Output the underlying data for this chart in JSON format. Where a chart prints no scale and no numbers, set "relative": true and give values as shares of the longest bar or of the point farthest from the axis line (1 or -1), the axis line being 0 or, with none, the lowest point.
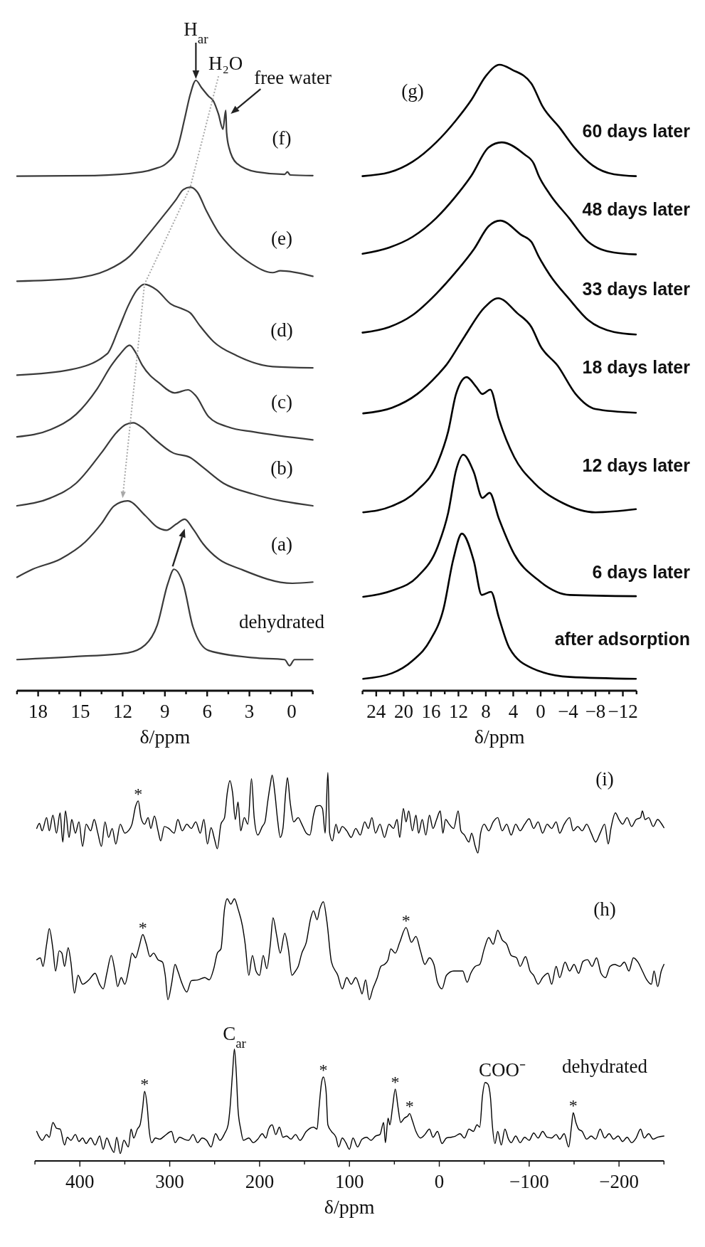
{
  "chart_data": [
    {
      "type": "line",
      "relative": true,
      "xlim": [
        19.5,
        -1.5
      ],
      "xticks": [
        {
          "value": 19.5,
          "label": null
        },
        18,
        {
          "value": 16.5,
          "label": null
        },
        15,
        {
          "value": 13.5,
          "label": null
        },
        12,
        {
          "value": 10.5,
          "label": null
        },
        9,
        {
          "value": 7.5,
          "label": null
        },
        6,
        {
          "value": 4.5,
          "label": null
        },
        3,
        {
          "value": 1.5,
          "label": null
        },
        0,
        {
          "value": -1.5,
          "label": null
        }
      ],
      "xlabel": "δ/ppm",
      "series": [
        {
          "name": "(f)",
          "color": "#3a3a3a",
          "x": [
            19.5,
            14.0,
            10.6,
            9.75,
            8.9,
            8.1,
            7.6,
            7.2,
            6.8,
            6.4,
            5.9,
            5.55,
            5.2,
            4.88,
            4.68,
            4.62,
            4.45,
            3.9,
            2.5,
            0.5,
            0.3,
            0.1,
            -1.5
          ],
          "values": [
            0.843,
            0.844,
            0.85,
            0.855,
            0.864,
            0.89,
            0.937,
            0.977,
            1,
            0.988,
            0.974,
            0.966,
            0.945,
            0.92,
            0.951,
            0.915,
            0.89,
            0.864,
            0.85,
            0.846,
            0.85,
            0.845,
            0.844
          ]
        },
        {
          "name": "(e)",
          "color": "#3a3a3a",
          "x": [
            19.5,
            15.7,
            13.1,
            11.5,
            10.3,
            9.25,
            8.2,
            7.7,
            7.2,
            6.7,
            6.05,
            5.2,
            4.2,
            2.9,
            1.35,
            0.8,
            -1.5
          ],
          "values": [
            0.671,
            0.675,
            0.689,
            0.712,
            0.744,
            0.774,
            0.805,
            0.821,
            0.825,
            0.817,
            0.786,
            0.751,
            0.724,
            0.7,
            0.685,
            0.688,
            0.679
          ]
        },
        {
          "name": "(d)",
          "color": "#3a3a3a",
          "x": [
            19.5,
            15.7,
            13.1,
            12.3,
            11.6,
            11.0,
            10.45,
            9.6,
            8.6,
            7.7,
            7.2,
            6.55,
            5.55,
            3.9,
            1.35,
            -1.5
          ],
          "values": [
            0.517,
            0.526,
            0.552,
            0.592,
            0.631,
            0.656,
            0.666,
            0.657,
            0.634,
            0.625,
            0.619,
            0.599,
            0.572,
            0.549,
            0.531,
            0.529
          ]
        },
        {
          "name": "(c)",
          "color": "#3a3a3a",
          "x": [
            19.5,
            17.1,
            15.3,
            13.8,
            12.8,
            12.2,
            11.5,
            11.1,
            10.6,
            9.35,
            8.3,
            7.35,
            6.8,
            5.9,
            4.5,
            2.7,
            -1.5
          ],
          "values": [
            0.416,
            0.428,
            0.453,
            0.495,
            0.533,
            0.551,
            0.566,
            0.555,
            0.533,
            0.503,
            0.488,
            0.493,
            0.483,
            0.449,
            0.432,
            0.424,
            0.411
          ]
        },
        {
          "name": "(b)",
          "color": "#3a3a3a",
          "x": [
            19.5,
            17.1,
            15.3,
            13.5,
            12.4,
            11.8,
            11.25,
            10.6,
            9.9,
            8.45,
            7.2,
            6.3,
            4.85,
            2.7,
            -1.5
          ],
          "values": [
            0.303,
            0.316,
            0.34,
            0.39,
            0.424,
            0.436,
            0.439,
            0.431,
            0.416,
            0.39,
            0.382,
            0.366,
            0.34,
            0.322,
            0.303
          ]
        },
        {
          "name": "(a)",
          "color": "#3a3a3a",
          "x": [
            19.5,
            18.4,
            16.4,
            14.6,
            13.5,
            12.6,
            11.65,
            10.4,
            9.55,
            8.9,
            8.2,
            7.6,
            7.0,
            6.3,
            5.2,
            3.6,
            -0.05,
            -1.5
          ],
          "values": [
            0.186,
            0.199,
            0.216,
            0.245,
            0.274,
            0.303,
            0.311,
            0.287,
            0.268,
            0.263,
            0.273,
            0.281,
            0.265,
            0.241,
            0.216,
            0.199,
            0.176,
            0.178
          ]
        },
        {
          "name": "dehydrated",
          "color": "#3a3a3a",
          "x": [
            19.5,
            15.3,
            11.65,
            10.4,
            9.55,
            8.8,
            8.35,
            7.7,
            7.0,
            5.9,
            2.7,
            0.5,
            0.15,
            -0.2,
            -1.5
          ],
          "values": [
            0.051,
            0.056,
            0.062,
            0.075,
            0.107,
            0.175,
            0.199,
            0.175,
            0.104,
            0.066,
            0.054,
            0.051,
            0.041,
            0.051,
            0.051
          ]
        }
      ],
      "annotations": [
        {
          "text": "H$_{ar}$",
          "x": 6.8,
          "y": 1
        },
        {
          "text": "H₂O",
          "x": 5.55,
          "y": 0.966
        },
        {
          "text": "free water",
          "x": 4.68,
          "y": 0.951
        }
      ]
    },
    {
      "type": "line",
      "relative": true,
      "title": "(g)",
      "xlim": [
        26,
        -14
      ],
      "xticks": [
        {
          "value": 26,
          "label": null
        },
        24,
        {
          "value": 22,
          "label": null
        },
        20,
        {
          "value": 18,
          "label": null
        },
        16,
        {
          "value": 14,
          "label": null
        },
        12,
        {
          "value": 10,
          "label": null
        },
        8,
        {
          "value": 6,
          "label": null
        },
        4,
        {
          "value": 2,
          "label": null
        },
        0,
        {
          "value": -2,
          "label": null
        },
        {
          "value": -4,
          "label": "−4"
        },
        {
          "value": -6,
          "label": null
        },
        {
          "value": -8,
          "label": "−8"
        },
        {
          "value": -10,
          "label": null
        },
        {
          "value": -12,
          "label": "−12"
        },
        {
          "value": -14,
          "label": null
        }
      ],
      "xlabel": "δ/ppm",
      "series": [
        {
          "name": "60 days later",
          "color": "#000000",
          "x": [
            26.0,
            22.1,
            18.7,
            15.25,
            12.45,
            10.1,
            8.0,
            6.0,
            4.15,
            1.35,
            -0.3,
            -2.8,
            -4.9,
            -7.6,
            -10.7,
            -13.9
          ],
          "values": [
            0.822,
            0.828,
            0.845,
            0.876,
            0.91,
            0.944,
            0.982,
            1,
            0.992,
            0.97,
            0.933,
            0.899,
            0.868,
            0.839,
            0.825,
            0.822
          ]
        },
        {
          "name": "48 days later",
          "color": "#000000",
          "x": [
            26.0,
            22.1,
            18.7,
            15.25,
            12.45,
            10.1,
            7.6,
            5.7,
            2.4,
            1.0,
            0.3,
            -1.35,
            -4.15,
            -6.95,
            -10.7,
            -13.9
          ],
          "values": [
            0.698,
            0.708,
            0.725,
            0.755,
            0.789,
            0.823,
            0.868,
            0.876,
            0.857,
            0.842,
            0.823,
            0.793,
            0.755,
            0.717,
            0.7,
            0.697
          ]
        },
        {
          "name": "33 days later",
          "color": "#000000",
          "x": [
            26.0,
            22.1,
            18.7,
            15.25,
            12.45,
            9.7,
            7.6,
            5.9,
            2.8,
            1.35,
            0.3,
            -1.35,
            -4.15,
            -6.95,
            -10.7,
            -13.9
          ],
          "values": [
            0.572,
            0.581,
            0.6,
            0.634,
            0.668,
            0.706,
            0.742,
            0.751,
            0.728,
            0.717,
            0.694,
            0.664,
            0.626,
            0.592,
            0.573,
            0.569
          ]
        },
        {
          "name": "18 days later",
          "color": "#000000",
          "x": [
            25.9,
            21.7,
            18.0,
            15.0,
            13.8,
            11.1,
            8.3,
            6.2,
            3.4,
            1.35,
            0,
            -2.5,
            -5.1,
            -8.0,
            -13.9
          ],
          "values": [
            0.443,
            0.452,
            0.474,
            0.505,
            0.52,
            0.566,
            0.611,
            0.627,
            0.603,
            0.581,
            0.55,
            0.519,
            0.474,
            0.45,
            0.444
          ]
        },
        {
          "name": "12 days later",
          "color": "#000000",
          "x": [
            25.9,
            21.7,
            18.0,
            15.0,
            13.5,
            12.35,
            10.8,
            9.45,
            8.5,
            7.35,
            6.1,
            3.85,
            0.95,
            -3.2,
            -8.0,
            -13.9
          ],
          "values": [
            0.285,
            0.295,
            0.32,
            0.365,
            0.414,
            0.474,
            0.501,
            0.486,
            0.474,
            0.481,
            0.434,
            0.373,
            0.332,
            0.3,
            0.285,
            0.29
          ]
        },
        {
          "name": "6 days later",
          "color": "#000000",
          "x": [
            25.9,
            21.7,
            18.0,
            15.0,
            13.5,
            12.35,
            11.3,
            9.75,
            8.5,
            7.45,
            6.1,
            3.85,
            0.5,
            -4.25,
            -13.9
          ],
          "values": [
            0.15,
            0.16,
            0.182,
            0.231,
            0.284,
            0.352,
            0.377,
            0.349,
            0.308,
            0.316,
            0.275,
            0.218,
            0.178,
            0.153,
            0.151
          ]
        },
        {
          "name": "after adsorption",
          "color": "#000000",
          "x": [
            25.9,
            21.7,
            18.7,
            16.1,
            14.2,
            12.75,
            11.5,
            9.75,
            8.6,
            7.25,
            6.1,
            4.55,
            1.25,
            -4.25,
            -13.9
          ],
          "values": [
            0.019,
            0.028,
            0.048,
            0.081,
            0.13,
            0.21,
            0.251,
            0.207,
            0.153,
            0.158,
            0.117,
            0.068,
            0.036,
            0.022,
            0.019
          ]
        }
      ]
    },
    {
      "type": "line",
      "relative": true,
      "xlim": [
        450,
        -250
      ],
      "xticks": [
        {
          "value": 450,
          "label": null
        },
        400,
        {
          "value": 350,
          "label": null
        },
        300,
        {
          "value": 250,
          "label": null
        },
        200,
        {
          "value": 150,
          "label": null
        },
        100,
        {
          "value": 50,
          "label": null
        },
        0,
        {
          "value": -50,
          "label": null
        },
        {
          "value": -100,
          "label": "−100"
        },
        {
          "value": -150,
          "label": null
        },
        {
          "value": -200,
          "label": "−200"
        },
        {
          "value": -250,
          "label": null
        }
      ],
      "xlabel": "δ/ppm",
      "series": [
        {
          "name": "(i)",
          "color": "#000000",
          "x": [
            448,
            445,
            442,
            437,
            434,
            430,
            426,
            422,
            419,
            416,
            412,
            409,
            405,
            401,
            397,
            393,
            388,
            384,
            380,
            376,
            372,
            368,
            364,
            360,
            355,
            350,
            346,
            342,
            338,
            335,
            332,
            328,
            324,
            321,
            317,
            313,
            310,
            306,
            301,
            295,
            291,
            286,
            281,
            276,
            271,
            266,
            262,
            258,
            254,
            250,
            247,
            243,
            239,
            236,
            233,
            230,
            227,
            224,
            221,
            217,
            213,
            209,
            206,
            202,
            197,
            194,
            191,
            188,
            186,
            183,
            180,
            177,
            174,
            171,
            169,
            166,
            162,
            157,
            153,
            148,
            144,
            140,
            137,
            133,
            130,
            127,
            124,
            122,
            119,
            115,
            112,
            108,
            103,
            98,
            93,
            88,
            83,
            79,
            75,
            71,
            66,
            61,
            56,
            51,
            47,
            44,
            40,
            37,
            34,
            30,
            26,
            23,
            19,
            15,
            11,
            7,
            3,
            -1,
            -4,
            -7,
            -11,
            -16,
            -21,
            -24,
            -28,
            -33,
            -36,
            -40,
            -43,
            -46,
            -50,
            -55,
            -60,
            -65,
            -70,
            -75,
            -80,
            -85,
            -90,
            -95,
            -100,
            -105,
            -110,
            -115,
            -120,
            -125,
            -130,
            -134,
            -139,
            -145,
            -149,
            -154,
            -159,
            -164,
            -169,
            -174,
            -179,
            -184,
            -188,
            -191,
            -196,
            -200,
            -204,
            -209,
            -214,
            -219,
            -224,
            -226,
            -229,
            -233,
            -238,
            -243,
            -247,
            -250
          ],
          "values": [
            0.856,
            0.869,
            0.85,
            0.884,
            0.85,
            0.89,
            0.844,
            0.896,
            0.821,
            0.901,
            0.833,
            0.879,
            0.844,
            0.873,
            0.81,
            0.867,
            0.85,
            0.879,
            0.844,
            0.81,
            0.873,
            0.833,
            0.856,
            0.816,
            0.867,
            0.844,
            0.85,
            0.867,
            0.913,
            0.927,
            0.884,
            0.867,
            0.884,
            0.856,
            0.888,
            0.85,
            0.824,
            0.861,
            0.856,
            0.844,
            0.879,
            0.85,
            0.867,
            0.856,
            0.873,
            0.844,
            0.879,
            0.816,
            0.858,
            0.827,
            0.804,
            0.867,
            0.884,
            0.947,
            0.979,
            0.947,
            0.879,
            0.924,
            0.85,
            0.884,
            0.867,
            0.984,
            0.884,
            0.839,
            0.861,
            0.873,
            0.924,
            0.97,
            0.993,
            0.947,
            0.879,
            0.833,
            0.856,
            0.947,
            0.987,
            0.924,
            0.873,
            0.884,
            0.867,
            0.844,
            0.839,
            0.89,
            0.913,
            0.915,
            0.907,
            0.844,
            1,
            0.844,
            0.824,
            0.867,
            0.844,
            0.861,
            0.85,
            0.833,
            0.856,
            0.839,
            0.873,
            0.856,
            0.884,
            0.844,
            0.867,
            0.833,
            0.867,
            0.856,
            0.879,
            0.833,
            0.907,
            0.873,
            0.901,
            0.85,
            0.89,
            0.844,
            0.879,
            0.839,
            0.89,
            0.856,
            0.879,
            0.901,
            0.844,
            0.879,
            0.867,
            0.856,
            0.901,
            0.85,
            0.839,
            0.821,
            0.844,
            0.81,
            0.793,
            0.844,
            0.867,
            0.85,
            0.873,
            0.884,
            0.85,
            0.867,
            0.839,
            0.867,
            0.85,
            0.867,
            0.881,
            0.856,
            0.873,
            0.844,
            0.867,
            0.856,
            0.873,
            0.844,
            0.867,
            0.884,
            0.85,
            0.861,
            0.85,
            0.867,
            0.844,
            0.821,
            0.844,
            0.867,
            0.816,
            0.856,
            0.896,
            0.879,
            0.867,
            0.884,
            0.861,
            0.879,
            0.884,
            0.901,
            0.879,
            0.884,
            0.861,
            0.879,
            0.869,
            0.858
          ]
        },
        {
          "name": "(h)",
          "color": "#000000",
          "x": [
            448,
            444,
            441,
            437,
            434,
            430,
            427,
            423,
            420,
            417,
            413,
            410,
            406,
            402,
            397,
            390,
            383,
            378,
            374,
            370,
            365,
            361,
            358,
            354,
            350,
            345,
            342,
            338,
            334,
            330,
            326,
            322,
            318,
            313,
            308,
            305,
            302,
            298,
            294,
            291,
            286,
            281,
            276,
            269,
            261,
            256,
            251,
            247,
            243,
            239,
            236,
            232,
            228,
            224,
            219,
            216,
            212,
            208,
            204,
            200,
            196,
            192,
            188,
            185,
            181,
            177,
            172,
            168,
            164,
            160,
            157,
            153,
            148,
            143,
            140,
            136,
            133,
            129,
            125,
            120,
            113,
            108,
            103,
            98,
            93,
            88,
            86,
            82,
            78,
            74,
            69,
            65,
            61,
            57,
            54,
            49,
            44,
            37,
            31,
            26,
            21,
            16,
            11,
            6,
            2,
            -3,
            -8,
            -16,
            -26,
            -31,
            -35,
            -40,
            -45,
            -50,
            -55,
            -60,
            -65,
            -70,
            -75,
            -80,
            -86,
            -90,
            -96,
            -101,
            -105,
            -110,
            -115,
            -121,
            -125,
            -130,
            -134,
            -140,
            -145,
            -150,
            -155,
            -160,
            -165,
            -170,
            -175,
            -180,
            -185,
            -190,
            -195,
            -201,
            -206,
            -211,
            -216,
            -221,
            -226,
            -231,
            -236,
            -239,
            -243,
            -247,
            -250
          ],
          "values": [
            0.518,
            0.523,
            0.501,
            0.558,
            0.598,
            0.546,
            0.489,
            0.541,
            0.535,
            0.501,
            0.549,
            0.512,
            0.432,
            0.478,
            0.455,
            0.466,
            0.483,
            0.455,
            0.443,
            0.483,
            0.529,
            0.489,
            0.449,
            0.472,
            0.455,
            0.501,
            0.535,
            0.523,
            0.552,
            0.583,
            0.558,
            0.526,
            0.535,
            0.518,
            0.512,
            0.478,
            0.415,
            0.455,
            0.506,
            0.489,
            0.455,
            0.435,
            0.464,
            0.466,
            0.472,
            0.466,
            0.495,
            0.535,
            0.546,
            0.649,
            0.675,
            0.661,
            0.675,
            0.649,
            0.604,
            0.558,
            0.478,
            0.529,
            0.489,
            0.478,
            0.529,
            0.495,
            0.558,
            0.626,
            0.581,
            0.535,
            0.586,
            0.546,
            0.478,
            0.489,
            0.501,
            0.535,
            0.563,
            0.626,
            0.644,
            0.621,
            0.649,
            0.667,
            0.615,
            0.512,
            0.478,
            0.443,
            0.472,
            0.455,
            0.472,
            0.443,
            0.43,
            0.466,
            0.415,
            0.443,
            0.472,
            0.501,
            0.506,
            0.518,
            0.546,
            0.535,
            0.563,
            0.601,
            0.563,
            0.578,
            0.541,
            0.506,
            0.523,
            0.506,
            0.46,
            0.443,
            0.478,
            0.489,
            0.489,
            0.46,
            0.483,
            0.501,
            0.506,
            0.546,
            0.575,
            0.558,
            0.594,
            0.569,
            0.558,
            0.529,
            0.523,
            0.501,
            0.526,
            0.489,
            0.478,
            0.455,
            0.472,
            0.483,
            0.455,
            0.501,
            0.472,
            0.512,
            0.489,
            0.506,
            0.483,
            0.514,
            0.518,
            0.501,
            0.523,
            0.483,
            0.472,
            0.501,
            0.506,
            0.501,
            0.512,
            0.489,
            0.523,
            0.512,
            0.489,
            0.466,
            0.455,
            0.489,
            0.449,
            0.489,
            0.506
          ]
        },
        {
          "name": "dehydrated",
          "color": "#000000",
          "x": [
            448,
            445,
            442,
            437,
            434,
            430,
            426,
            422,
            417,
            414,
            410,
            405,
            401,
            397,
            393,
            388,
            383,
            378,
            374,
            370,
            366,
            362,
            359,
            355,
            351,
            346,
            343,
            340,
            336,
            333,
            330,
            328,
            325,
            323,
            320,
            316,
            311,
            306,
            298,
            294,
            289,
            284,
            279,
            274,
            269,
            264,
            259,
            254,
            249,
            244,
            239,
            235,
            233,
            230,
            228,
            226,
            224,
            221,
            218,
            212,
            207,
            202,
            197,
            193,
            190,
            186,
            182,
            178,
            174,
            170,
            165,
            160,
            155,
            148,
            140,
            136,
            134,
            131,
            129,
            126,
            124,
            120,
            115,
            112,
            108,
            104,
            100,
            96,
            91,
            86,
            81,
            76,
            71,
            66,
            62,
            60,
            57,
            55,
            52,
            49,
            46,
            43,
            39,
            35,
            33,
            30,
            26,
            21,
            16,
            11,
            7,
            2,
            -3,
            -8,
            -13,
            -18,
            -23,
            -28,
            -33,
            -38,
            -42,
            -45,
            -48,
            -51,
            -54,
            -57,
            -59,
            -62,
            -65,
            -69,
            -73,
            -77,
            -80,
            -85,
            -90,
            -95,
            -100,
            -105,
            -110,
            -115,
            -120,
            -125,
            -130,
            -134,
            -139,
            -144,
            -147,
            -149,
            -152,
            -155,
            -159,
            -164,
            -169,
            -174,
            -179,
            -184,
            -189,
            -194,
            -199,
            -204,
            -209,
            -214,
            -219,
            -224,
            -228,
            -233,
            -238,
            -243,
            -250
          ],
          "values": [
            0.076,
            0.061,
            0.053,
            0.068,
            0.061,
            0.099,
            0.084,
            0.082,
            0.041,
            0.061,
            0.053,
            0.068,
            0.05,
            0.059,
            0.045,
            0.059,
            0.041,
            0.064,
            0.03,
            0.059,
            0.038,
            0.022,
            0.061,
            0.019,
            0.053,
            0.036,
            0.082,
            0.059,
            0.082,
            0.093,
            0.139,
            0.179,
            0.139,
            0.082,
            0.047,
            0.059,
            0.056,
            0.064,
            0.076,
            0.047,
            0.061,
            0.056,
            0.053,
            0.068,
            0.047,
            0.059,
            0.053,
            0.036,
            0.07,
            0.053,
            0.07,
            0.093,
            0.133,
            0.23,
            0.288,
            0.23,
            0.133,
            0.082,
            0.053,
            0.059,
            0.047,
            0.056,
            0.07,
            0.059,
            0.082,
            0.093,
            0.068,
            0.087,
            0.061,
            0.064,
            0.056,
            0.068,
            0.053,
            0.076,
            0.087,
            0.082,
            0.133,
            0.202,
            0.216,
            0.179,
            0.093,
            0.076,
            0.061,
            0.036,
            0.059,
            0.047,
            0.03,
            0.059,
            0.036,
            0.056,
            0.061,
            0.053,
            0.064,
            0.068,
            0.099,
            0.047,
            0.11,
            0.093,
            0.139,
            0.185,
            0.139,
            0.099,
            0.11,
            0.116,
            0.122,
            0.104,
            0.076,
            0.059,
            0.068,
            0.082,
            0.061,
            0.076,
            0.045,
            0.059,
            0.061,
            0.064,
            0.07,
            0.059,
            0.082,
            0.076,
            0.093,
            0.087,
            0.167,
            0.202,
            0.198,
            0.162,
            0.093,
            0.045,
            0.076,
            0.041,
            0.082,
            0.056,
            0.047,
            0.064,
            0.047,
            0.061,
            0.053,
            0.072,
            0.059,
            0.076,
            0.061,
            0.059,
            0.068,
            0.056,
            0.07,
            0.036,
            0.087,
            0.124,
            0.099,
            0.082,
            0.076,
            0.056,
            0.064,
            0.056,
            0.082,
            0.059,
            0.07,
            0.056,
            0.064,
            0.05,
            0.061,
            0.047,
            0.059,
            0.082,
            0.059,
            0.07,
            0.056,
            0.061,
            0.064
          ]
        }
      ],
      "annotations": [
        {
          "text": "*",
          "x": 335,
          "y": 0.927
        },
        {
          "text": "*",
          "x": 330,
          "y": 0.583
        },
        {
          "text": "*",
          "x": 37,
          "y": 0.601
        },
        {
          "text": "*",
          "x": 328,
          "y": 0.179
        },
        {
          "text": "C$_{ar}$",
          "x": 228,
          "y": 0.288
        },
        {
          "text": "*",
          "x": 129,
          "y": 0.216
        },
        {
          "text": "*",
          "x": 49,
          "y": 0.185
        },
        {
          "text": "*",
          "x": 33,
          "y": 0.122
        },
        {
          "text": "COO⁻",
          "x": -51,
          "y": 0.202
        },
        {
          "text": "*",
          "x": -149,
          "y": 0.124
        }
      ]
    }
  ]
}
